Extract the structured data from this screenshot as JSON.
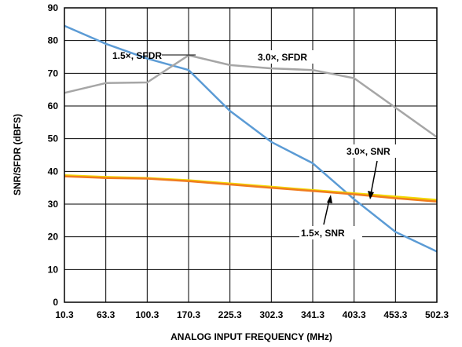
{
  "chart_data": {
    "type": "line",
    "xlabel": "ANALOG INPUT FREQUENCY (MHz)",
    "ylabel": "SNR/SFDR (dBFS)",
    "ylim": [
      0,
      90
    ],
    "yticks": [
      "0",
      "10",
      "20",
      "30",
      "40",
      "50",
      "60",
      "70",
      "80",
      "90"
    ],
    "x_categories": [
      "10.3",
      "63.3",
      "100.3",
      "170.3",
      "225.3",
      "302.3",
      "341.3",
      "403.3",
      "453.3",
      "502.3"
    ],
    "grid": true,
    "series": [
      {
        "name": "1.5×, SFDR",
        "color": "#5b9bd5",
        "values": [
          84.5,
          79.0,
          74.5,
          71.0,
          58.5,
          49.0,
          42.5,
          31.5,
          21.5,
          15.5
        ]
      },
      {
        "name": "3.0×, SFDR",
        "color": "#a6a6a6",
        "values": [
          64.0,
          67.0,
          67.2,
          75.5,
          72.5,
          71.5,
          71.0,
          68.5,
          59.5,
          50.5
        ]
      },
      {
        "name": "3.0×, SNR",
        "color": "#f2d700",
        "values": [
          38.8,
          38.3,
          38.0,
          37.3,
          36.3,
          35.3,
          34.3,
          33.3,
          32.3,
          31.3
        ]
      },
      {
        "name": "1.5×, SNR",
        "color": "#f07c1e",
        "values": [
          38.5,
          38.0,
          37.8,
          37.0,
          36.0,
          35.0,
          34.0,
          33.0,
          31.8,
          30.8
        ]
      }
    ],
    "annotations": [
      {
        "text": "1.5×, SFDR",
        "target": "1.5×, SFDR"
      },
      {
        "text": "3.0×, SFDR",
        "target": "3.0×, SFDR"
      },
      {
        "text": "3.0×, SNR",
        "target": "3.0×, SNR"
      },
      {
        "text": "1.5×, SNR",
        "target": "1.5×, SNR"
      }
    ]
  }
}
